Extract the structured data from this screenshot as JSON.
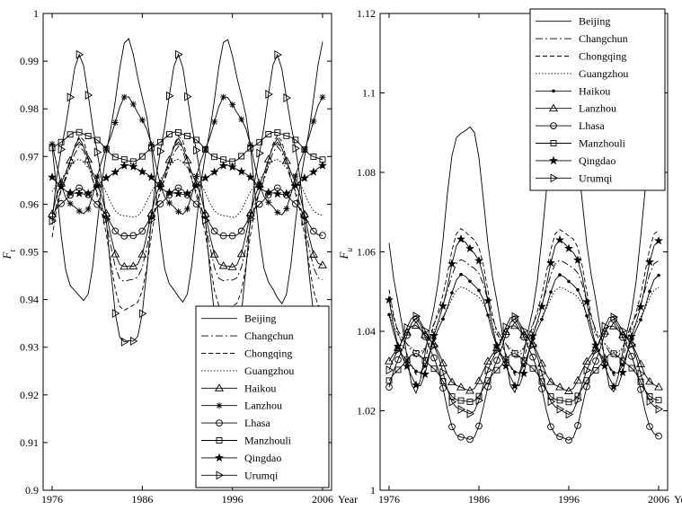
{
  "chart_data": [
    {
      "type": "line",
      "ylabel": "F_t",
      "ylabel_main": "F",
      "ylabel_sub": "t",
      "xlabel": "Year",
      "x_ticks": [
        1976,
        1986,
        1996,
        2006
      ],
      "xlim": [
        1975,
        2007
      ],
      "ylim": [
        0.9,
        1.0
      ],
      "y_ticks": [
        "0.9",
        "0.91",
        "0.92",
        "0.93",
        "0.94",
        "0.95",
        "0.96",
        "0.97",
        "0.98",
        "0.99",
        "1"
      ],
      "grid": false,
      "legend_position": "bottom-right",
      "series": [
        {
          "name": "Beijing",
          "marker": "none",
          "dash": "",
          "mean": 0.966,
          "amp": -0.027,
          "phase": 0.0
        },
        {
          "name": "Changchun",
          "marker": "none",
          "dash": "8,3,2,3",
          "mean": 0.957,
          "amp": 0.014,
          "phase": 0.0
        },
        {
          "name": "Chongqing",
          "marker": "none",
          "dash": "5,3",
          "mean": 0.955,
          "amp": 0.018,
          "phase": 0.0
        },
        {
          "name": "Guangzhou",
          "marker": "none",
          "dash": "1.5,2",
          "mean": 0.963,
          "amp": 0.006,
          "phase": 0.0
        },
        {
          "name": "Haikou",
          "marker": "triangle-up",
          "dash": "",
          "mean": 0.959,
          "amp": 0.013,
          "phase": 0.0
        },
        {
          "name": "Lanzhou",
          "marker": "asterisk",
          "dash": "",
          "mean": 0.97,
          "amp": -0.012,
          "phase": 0.0
        },
        {
          "name": "Lhasa",
          "marker": "circle",
          "dash": "",
          "mean": 0.958,
          "amp": 0.005,
          "phase": 0.0
        },
        {
          "name": "Manzhouli",
          "marker": "square",
          "dash": "",
          "mean": 0.972,
          "amp": 0.003,
          "phase": 0.0
        },
        {
          "name": "Qingdao",
          "marker": "star",
          "dash": "",
          "mean": 0.965,
          "amp": -0.003,
          "phase": 0.0
        },
        {
          "name": "Urumqi",
          "marker": "triangle-right",
          "dash": "",
          "mean": 0.959,
          "amp": 0.03,
          "phase": 0.0
        }
      ]
    },
    {
      "type": "line",
      "ylabel": "F_u",
      "ylabel_main": "F",
      "ylabel_sub": "u",
      "xlabel": "Year",
      "x_ticks": [
        1976,
        1986,
        1996,
        2006
      ],
      "xlim": [
        1975,
        2007
      ],
      "ylim": [
        1.0,
        1.12
      ],
      "y_ticks": [
        "1",
        "1.02",
        "1.04",
        "1.06",
        "1.08",
        "1.1",
        "1.12"
      ],
      "grid": false,
      "legend_position": "top-right",
      "series": [
        {
          "name": "Beijing",
          "marker": "none",
          "dash": "",
          "mean": 1.06,
          "amp": -0.033,
          "phase": 0.0
        },
        {
          "name": "Changchun",
          "marker": "none",
          "dash": "8,3,2,3",
          "mean": 1.046,
          "amp": -0.012,
          "phase": 0.0
        },
        {
          "name": "Chongqing",
          "marker": "none",
          "dash": "5,3",
          "mean": 1.048,
          "amp": -0.018,
          "phase": 0.0
        },
        {
          "name": "Guangzhou",
          "marker": "none",
          "dash": "1.5,2",
          "mean": 1.043,
          "amp": -0.008,
          "phase": 0.0
        },
        {
          "name": "Haikou",
          "marker": "dot",
          "dash": "",
          "mean": 1.042,
          "amp": -0.012,
          "phase": 0.0
        },
        {
          "name": "Lanzhou",
          "marker": "triangle-up",
          "dash": "",
          "mean": 1.033,
          "amp": 0.008,
          "phase": 0.0
        },
        {
          "name": "Lhasa",
          "marker": "circle",
          "dash": "",
          "mean": 1.027,
          "amp": 0.015,
          "phase": 0.0
        },
        {
          "name": "Manzhouli",
          "marker": "square",
          "dash": "",
          "mean": 1.028,
          "amp": 0.006,
          "phase": 0.0
        },
        {
          "name": "Qingdao",
          "marker": "star",
          "dash": "",
          "mean": 1.045,
          "amp": -0.018,
          "phase": 0.0
        },
        {
          "name": "Urumqi",
          "marker": "triangle-right",
          "dash": "",
          "mean": 1.031,
          "amp": 0.012,
          "phase": 0.0
        }
      ]
    }
  ]
}
